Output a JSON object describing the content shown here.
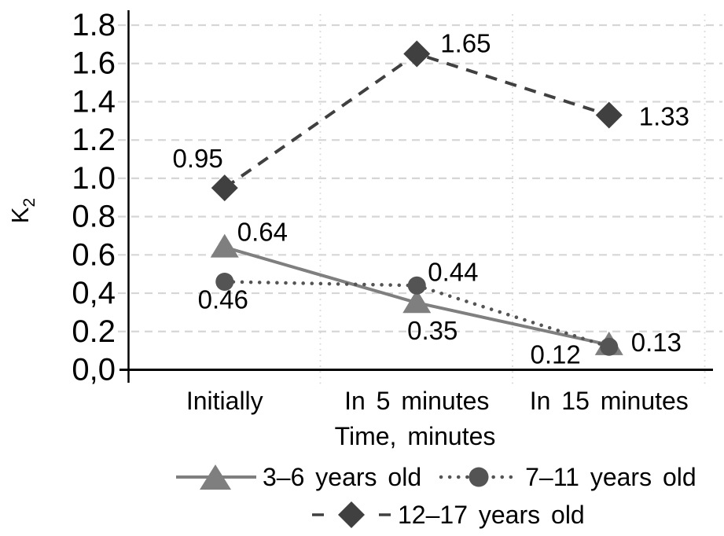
{
  "figure": {
    "background": "#ffffff"
  },
  "chart_data": {
    "type": "line",
    "title": "",
    "categories": [
      "Initially",
      "In 5 minutes",
      "In 15 minutes"
    ],
    "xlabel": "Time, minutes",
    "ylabel": "K",
    "ylabel_subscript": "2",
    "ylim": [
      0,
      1.8
    ],
    "ytick_interval": 0.2,
    "ytick_labels": [
      "0,0",
      "0.2",
      "0,4",
      "0.6",
      "0.8",
      "1.0",
      "1.2",
      "1.4",
      "1.6",
      "1.8"
    ],
    "grid": {
      "horizontal": "dashed",
      "vertical": "dotted",
      "color": "#d6d6d6"
    },
    "legend_position": "bottom",
    "series": [
      {
        "name": "3–6 years old",
        "marker": "triangle",
        "line_style": "solid",
        "color": "#7f7f7f",
        "values": [
          0.64,
          0.35,
          0.13
        ],
        "point_labels": [
          "0.64",
          "0.35",
          "0.13"
        ]
      },
      {
        "name": "7–11 years old",
        "marker": "circle",
        "line_style": "dotted",
        "color": "#545454",
        "values": [
          0.46,
          0.44,
          0.12
        ],
        "point_labels": [
          "0.46",
          "0.44",
          "0.12"
        ]
      },
      {
        "name": "12–17 years old",
        "marker": "diamond",
        "line_style": "dashed",
        "color": "#404040",
        "values": [
          0.95,
          1.65,
          1.33
        ],
        "point_labels": [
          "0.95",
          "1.65",
          "1.33"
        ]
      }
    ],
    "axis_color": "#000000",
    "text_color": "#000000"
  }
}
